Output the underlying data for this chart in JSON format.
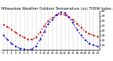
{
  "title": "Milwaukee Weather Outdoor Temperature (vs) THSW Index per Hour (Last 24 Hours)",
  "temp_color": "#cc0000",
  "thsw_color": "#0000cc",
  "background_color": "#ffffff",
  "plot_bg_color": "#ffffff",
  "grid_color": "#bbbbbb",
  "hours": [
    0,
    1,
    2,
    3,
    4,
    5,
    6,
    7,
    8,
    9,
    10,
    11,
    12,
    13,
    14,
    15,
    16,
    17,
    18,
    19,
    20,
    21,
    22,
    23
  ],
  "temp_values": [
    52,
    48,
    42,
    36,
    30,
    26,
    22,
    22,
    26,
    36,
    50,
    60,
    66,
    72,
    74,
    72,
    68,
    62,
    54,
    46,
    38,
    34,
    30,
    28
  ],
  "thsw_values": [
    30,
    22,
    14,
    8,
    4,
    2,
    0,
    2,
    8,
    22,
    38,
    54,
    62,
    72,
    78,
    76,
    68,
    56,
    42,
    30,
    20,
    14,
    10,
    8
  ],
  "ylim": [
    0,
    80
  ],
  "ytick_values": [
    10,
    20,
    30,
    40,
    50,
    60,
    70,
    80
  ],
  "ytick_labels": [
    "10",
    "20",
    "30",
    "40",
    "50",
    "60",
    "70",
    "80"
  ],
  "title_fontsize": 3.8,
  "tick_fontsize": 3.0,
  "linewidth": 0.8,
  "markersize": 1.5,
  "dashes": [
    2,
    2
  ]
}
